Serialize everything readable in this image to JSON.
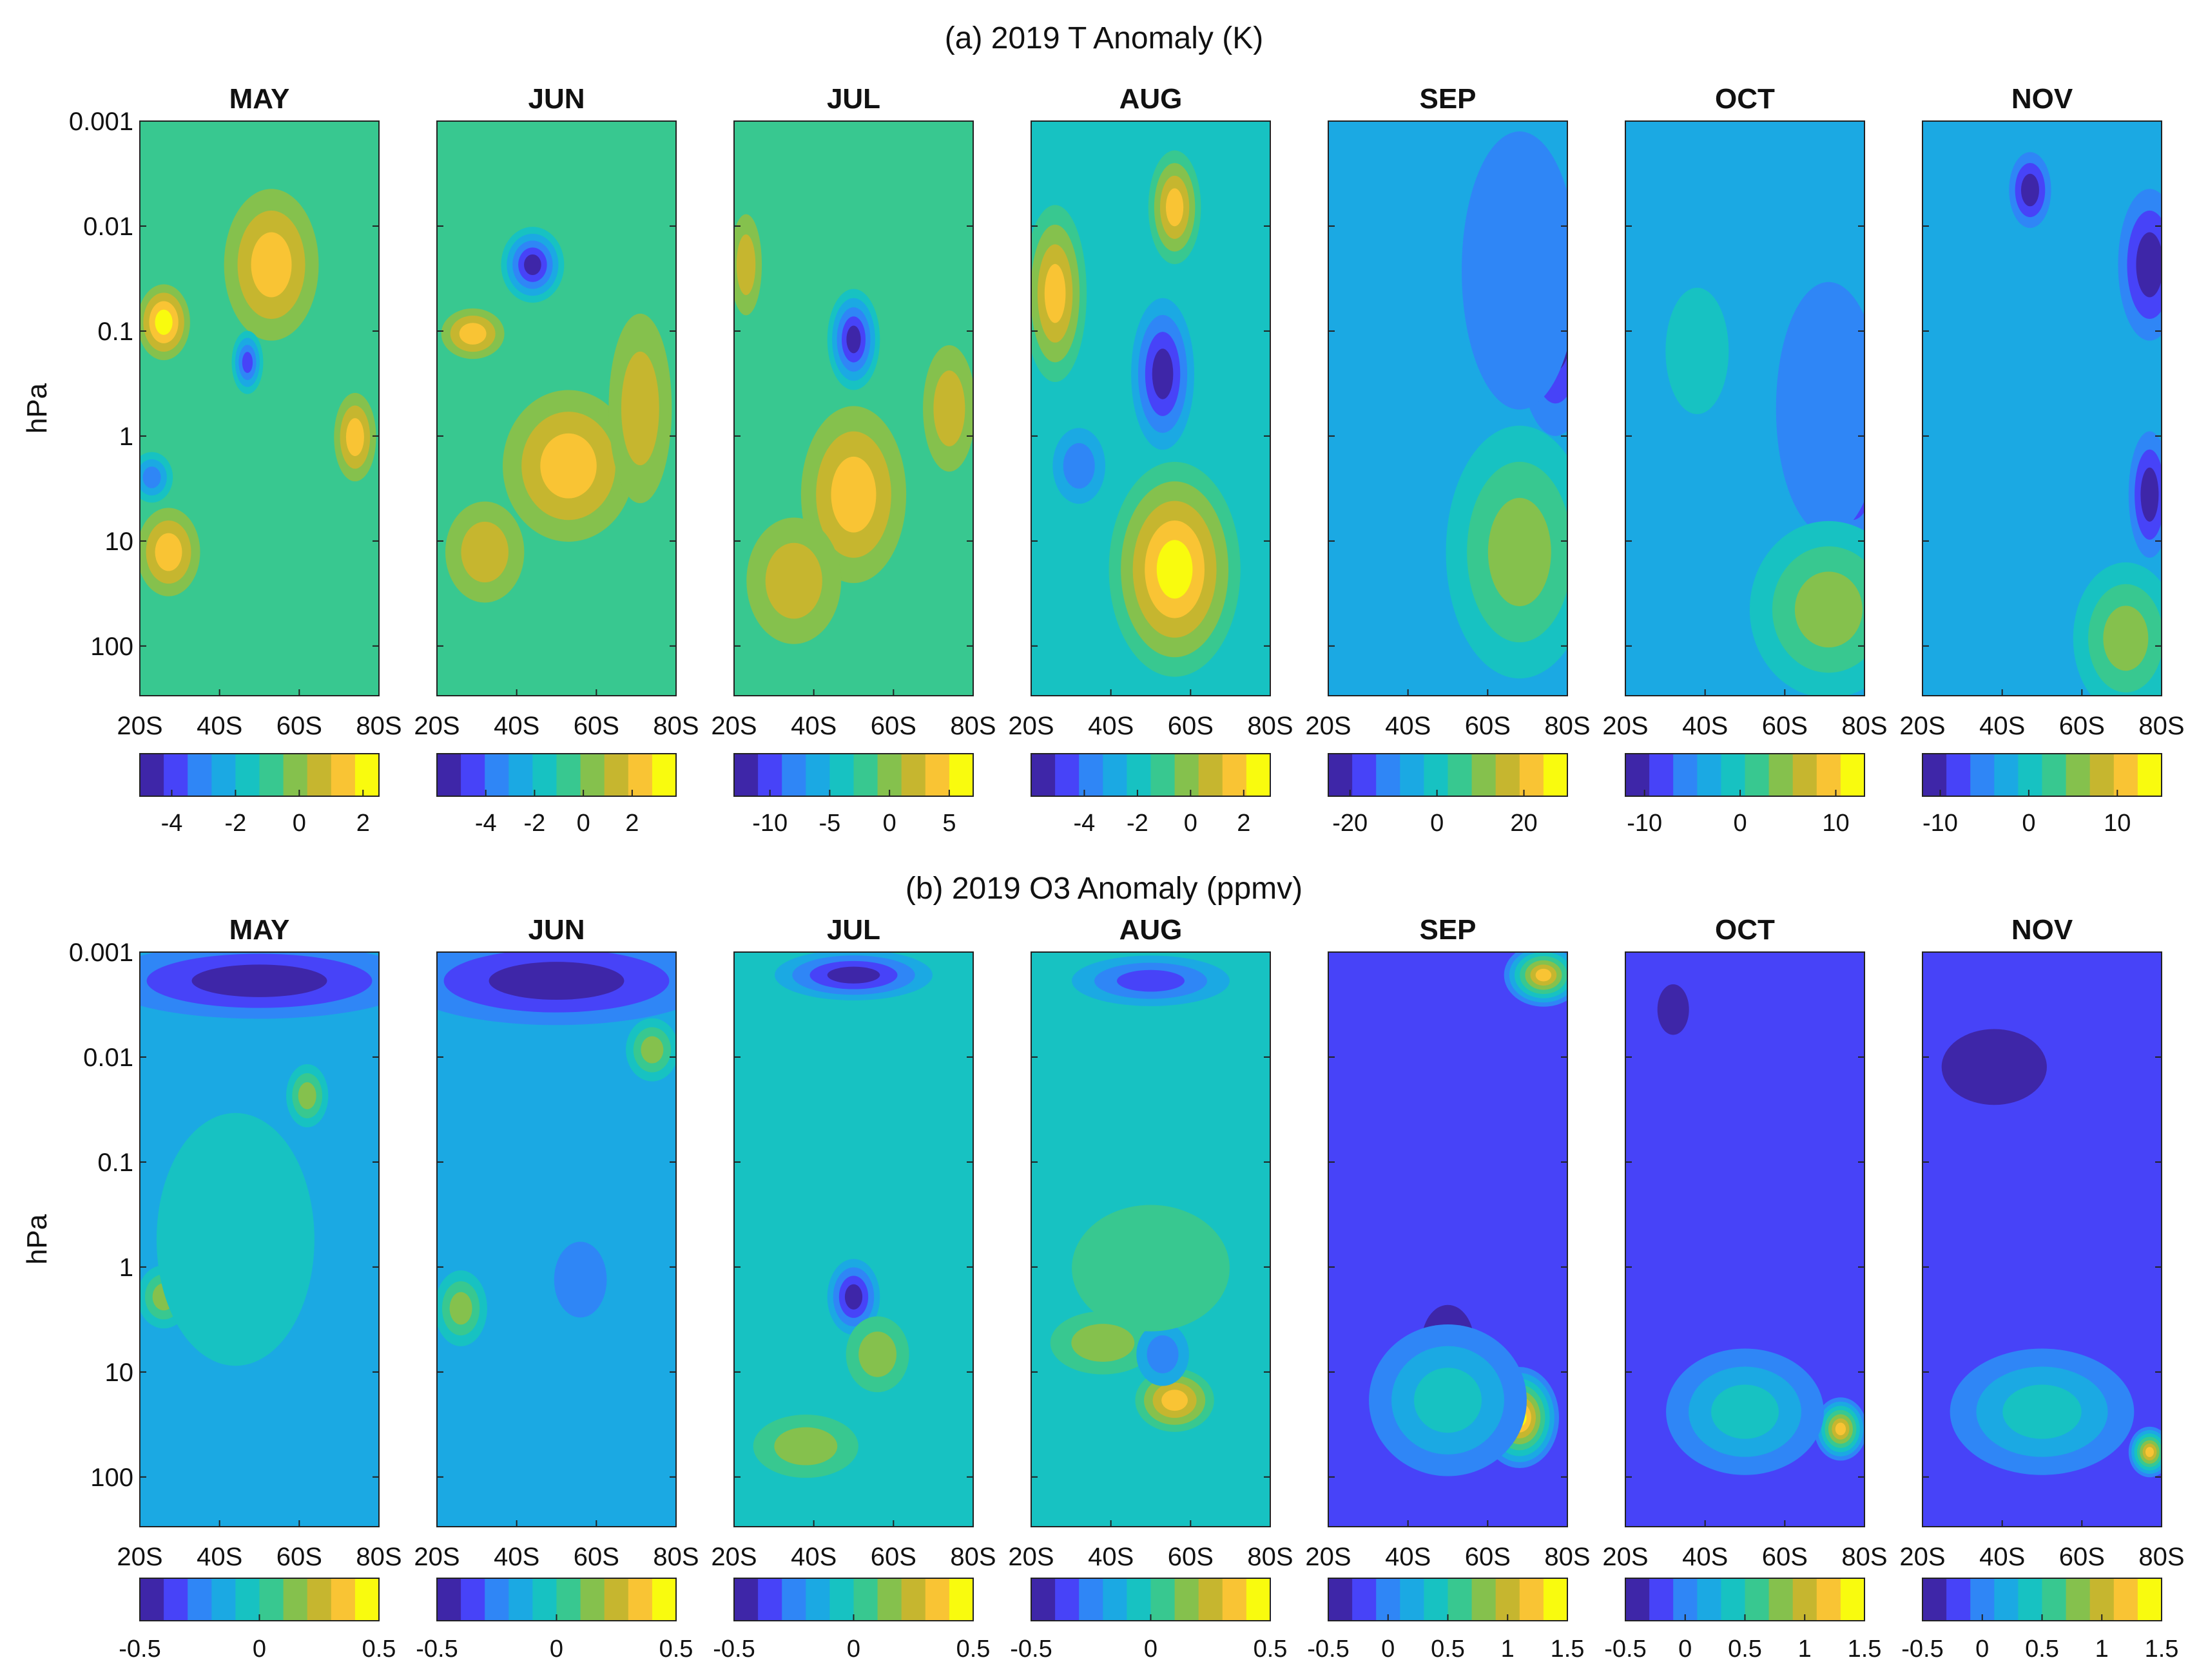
{
  "chart_data": [
    {
      "type": "heatmap",
      "title": "(a) 2019 T Anomaly (K)",
      "ylabel": "hPa",
      "y_ticks": [
        "0.001",
        "0.01",
        "0.1",
        "1",
        "10",
        "100"
      ],
      "x_ticks": [
        "20S",
        "40S",
        "60S",
        "80S"
      ],
      "panels": [
        {
          "month": "MAY",
          "colorbar_ticks": [
            "-4",
            "-2",
            "0",
            "2"
          ],
          "clim": [
            -5,
            2.5
          ]
        },
        {
          "month": "JUN",
          "colorbar_ticks": [
            "-4",
            "-2",
            "0",
            "2"
          ],
          "clim": [
            -6,
            3.8
          ]
        },
        {
          "month": "JUL",
          "colorbar_ticks": [
            "-10",
            "-5",
            "0",
            "5"
          ],
          "clim": [
            -13,
            7
          ]
        },
        {
          "month": "AUG",
          "colorbar_ticks": [
            "-4",
            "-2",
            "0",
            "2"
          ],
          "clim": [
            -6,
            3
          ]
        },
        {
          "month": "SEP",
          "colorbar_ticks": [
            "-20",
            "0",
            "20"
          ],
          "clim": [
            -25,
            30
          ]
        },
        {
          "month": "OCT",
          "colorbar_ticks": [
            "-10",
            "0",
            "10"
          ],
          "clim": [
            -12,
            13
          ]
        },
        {
          "month": "NOV",
          "colorbar_ticks": [
            "-10",
            "0",
            "10"
          ],
          "clim": [
            -12,
            15
          ]
        }
      ]
    },
    {
      "type": "heatmap",
      "title": "(b) 2019 O3 Anomaly (ppmv)",
      "ylabel": "hPa",
      "y_ticks": [
        "0.001",
        "0.01",
        "0.1",
        "1",
        "10",
        "100"
      ],
      "x_ticks": [
        "20S",
        "40S",
        "60S",
        "80S"
      ],
      "panels": [
        {
          "month": "MAY",
          "colorbar_ticks": [
            "-0.5",
            "0",
            "0.5"
          ],
          "clim": [
            -0.5,
            0.5
          ]
        },
        {
          "month": "JUN",
          "colorbar_ticks": [
            "-0.5",
            "0",
            "0.5"
          ],
          "clim": [
            -0.5,
            0.5
          ]
        },
        {
          "month": "JUL",
          "colorbar_ticks": [
            "-0.5",
            "0",
            "0.5"
          ],
          "clim": [
            -0.5,
            0.5
          ]
        },
        {
          "month": "AUG",
          "colorbar_ticks": [
            "-0.5",
            "0",
            "0.5"
          ],
          "clim": [
            -0.5,
            0.5
          ]
        },
        {
          "month": "SEP",
          "colorbar_ticks": [
            "-0.5",
            "0",
            "0.5",
            "1",
            "1.5"
          ],
          "clim": [
            -0.5,
            1.5
          ]
        },
        {
          "month": "OCT",
          "colorbar_ticks": [
            "-0.5",
            "0",
            "0.5",
            "1",
            "1.5"
          ],
          "clim": [
            -0.5,
            1.5
          ]
        },
        {
          "month": "NOV",
          "colorbar_ticks": [
            "-0.5",
            "0",
            "0.5",
            "1",
            "1.5"
          ],
          "clim": [
            -0.5,
            1.5
          ]
        }
      ]
    }
  ],
  "colormap": [
    "#3e26a8",
    "#4743f8",
    "#2f86f6",
    "#1ba9e3",
    "#17c2c2",
    "#38c890",
    "#85c14d",
    "#c6b62f",
    "#f9c434",
    "#f9fb0e"
  ]
}
